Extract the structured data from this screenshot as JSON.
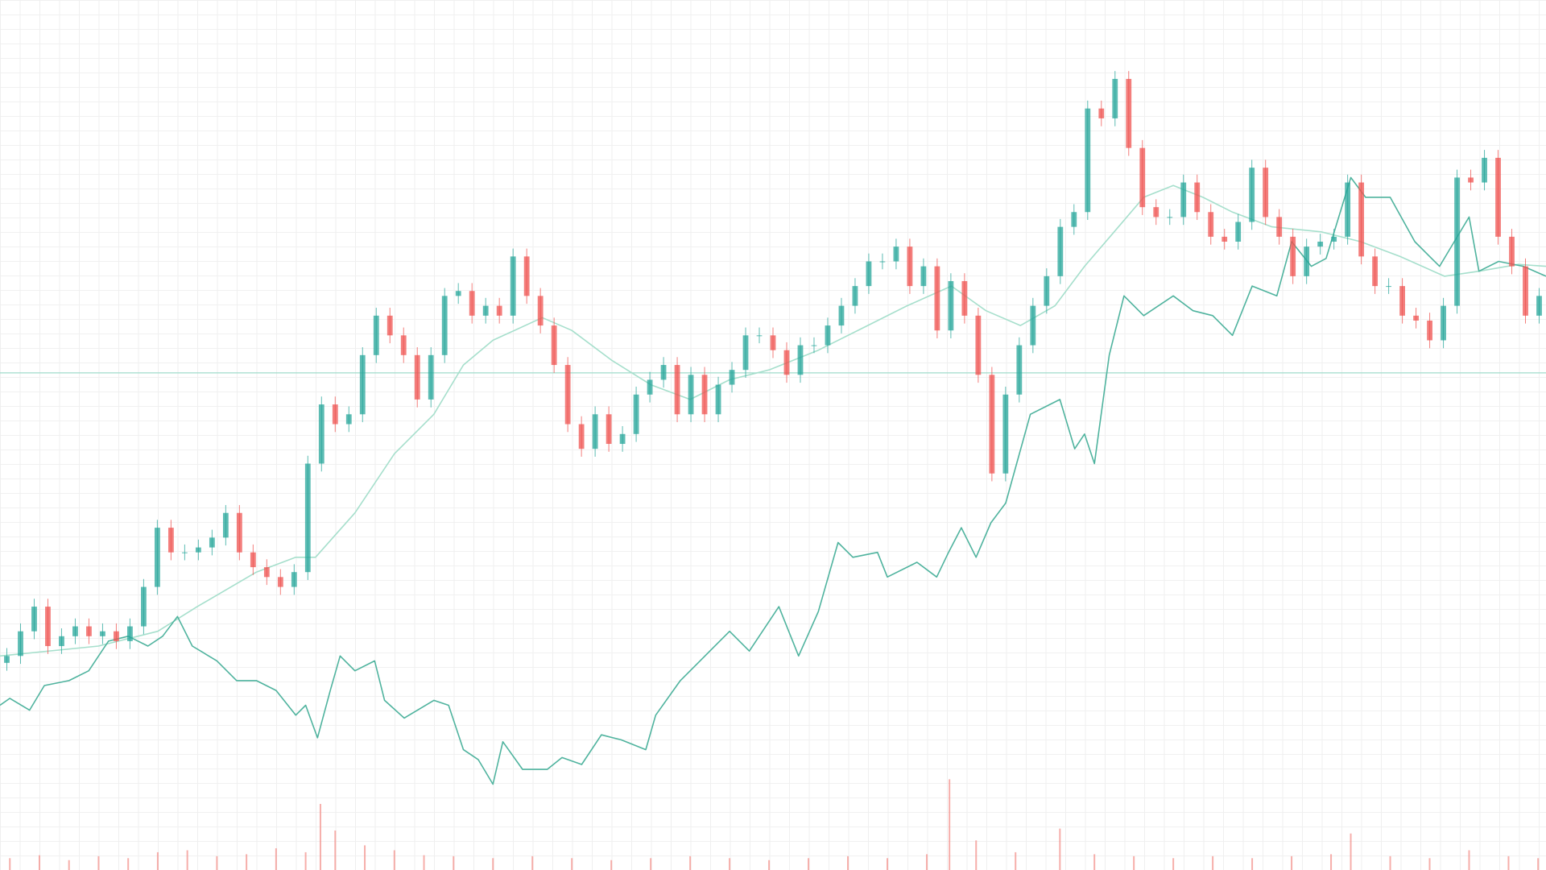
{
  "chart_data": {
    "type": "candlestick",
    "xlim": [
      0,
      1568
    ],
    "ylim": [
      0,
      882
    ],
    "up_color": "#26a69a",
    "down_color": "#ef5350",
    "open": [
      210,
      217,
      242,
      267,
      227,
      237,
      247,
      237,
      242,
      232,
      247,
      287,
      347,
      322,
      322,
      327,
      337,
      362,
      322,
      307,
      297,
      287,
      302,
      412,
      472,
      452,
      462,
      522,
      562,
      542,
      522,
      477,
      522,
      582,
      587,
      562,
      572,
      562,
      622,
      582,
      552,
      512,
      452,
      427,
      462,
      432,
      442,
      482,
      497,
      512,
      462,
      502,
      462,
      492,
      507,
      542,
      542,
      527,
      502,
      532,
      532,
      552,
      572,
      592,
      617,
      617,
      632,
      592,
      612,
      547,
      597,
      562,
      502,
      402,
      482,
      532,
      572,
      602,
      652,
      667,
      772,
      762,
      802,
      732,
      672,
      662,
      662,
      697,
      667,
      642,
      637,
      657,
      712,
      662,
      642,
      602,
      632,
      637,
      642,
      697,
      622,
      592,
      592,
      562,
      557,
      537,
      572,
      702,
      697,
      722,
      642,
      612,
      562
    ],
    "high": [
      225,
      250,
      275,
      275,
      245,
      255,
      255,
      250,
      250,
      255,
      295,
      355,
      355,
      330,
      335,
      345,
      370,
      370,
      330,
      315,
      305,
      310,
      420,
      480,
      480,
      470,
      530,
      570,
      570,
      550,
      530,
      530,
      590,
      595,
      595,
      580,
      580,
      630,
      630,
      590,
      560,
      520,
      460,
      470,
      470,
      450,
      490,
      505,
      520,
      520,
      510,
      510,
      500,
      515,
      550,
      550,
      550,
      535,
      540,
      540,
      560,
      580,
      600,
      625,
      625,
      640,
      640,
      620,
      620,
      605,
      605,
      570,
      510,
      490,
      540,
      580,
      610,
      660,
      675,
      780,
      780,
      810,
      810,
      740,
      680,
      670,
      705,
      705,
      675,
      650,
      665,
      720,
      720,
      670,
      650,
      640,
      645,
      650,
      705,
      705,
      630,
      600,
      600,
      570,
      565,
      580,
      710,
      710,
      730,
      730,
      650,
      620,
      590
    ],
    "low": [
      202,
      209,
      234,
      219,
      219,
      229,
      229,
      229,
      224,
      224,
      239,
      279,
      314,
      314,
      314,
      319,
      329,
      314,
      299,
      289,
      279,
      279,
      294,
      404,
      444,
      444,
      454,
      514,
      534,
      514,
      469,
      469,
      514,
      574,
      554,
      554,
      554,
      554,
      574,
      544,
      504,
      444,
      419,
      419,
      424,
      424,
      434,
      474,
      489,
      454,
      454,
      454,
      454,
      484,
      499,
      534,
      519,
      494,
      494,
      524,
      524,
      544,
      564,
      584,
      609,
      609,
      584,
      584,
      539,
      539,
      554,
      494,
      394,
      394,
      474,
      524,
      564,
      594,
      644,
      659,
      754,
      754,
      724,
      664,
      654,
      654,
      654,
      659,
      634,
      629,
      629,
      649,
      654,
      634,
      594,
      594,
      624,
      629,
      634,
      614,
      584,
      584,
      554,
      549,
      529,
      529,
      564,
      689,
      689,
      634,
      604,
      554,
      554
    ],
    "close": [
      217,
      242,
      267,
      227,
      237,
      247,
      237,
      242,
      232,
      247,
      287,
      347,
      322,
      322,
      327,
      337,
      362,
      322,
      307,
      297,
      287,
      302,
      412,
      472,
      452,
      462,
      522,
      562,
      542,
      522,
      477,
      522,
      582,
      587,
      562,
      572,
      562,
      622,
      582,
      552,
      512,
      452,
      427,
      462,
      432,
      442,
      482,
      497,
      512,
      462,
      502,
      462,
      492,
      507,
      542,
      542,
      527,
      502,
      532,
      532,
      552,
      572,
      592,
      617,
      617,
      632,
      592,
      612,
      547,
      597,
      562,
      502,
      402,
      482,
      532,
      572,
      602,
      652,
      667,
      772,
      762,
      802,
      732,
      672,
      662,
      662,
      697,
      667,
      642,
      637,
      657,
      712,
      662,
      642,
      602,
      632,
      637,
      642,
      697,
      622,
      592,
      592,
      562,
      557,
      537,
      572,
      702,
      697,
      722,
      642,
      612,
      562,
      582
    ],
    "lines": [
      {
        "color": "#a6dfcc",
        "x": [
          0,
          100,
          160,
          200,
          260,
          300,
          320,
          360,
          400,
          440,
          470,
          500,
          550,
          580,
          620,
          660,
          700,
          740,
          780,
          830,
          880,
          920,
          965,
          1000,
          1035,
          1070,
          1100,
          1130,
          1160,
          1190,
          1220,
          1250,
          1290,
          1340,
          1380,
          1420,
          1465,
          1500,
          1540,
          1568
        ],
        "values": [
          217,
          227,
          242,
          267,
          302,
          317,
          317,
          362,
          422,
          462,
          512,
          537,
          560,
          547,
          517,
          492,
          477,
          497,
          507,
          527,
          552,
          572,
          592,
          567,
          552,
          572,
          612,
          647,
          682,
          694,
          682,
          667,
          652,
          647,
          637,
          622,
          602,
          607,
          614,
          612
        ]
      },
      {
        "color": "#4fb39e",
        "x": [
          0,
          10,
          30,
          45,
          70,
          90,
          110,
          130,
          150,
          165,
          180,
          195,
          220,
          240,
          260,
          280,
          300,
          310,
          322,
          335,
          345,
          360,
          380,
          390,
          410,
          440,
          455,
          470,
          485,
          500,
          510,
          530,
          555,
          570,
          590,
          610,
          630,
          655,
          665,
          690,
          710,
          740,
          760,
          790,
          810,
          830,
          850,
          865,
          890,
          900,
          930,
          950,
          962,
          975,
          990,
          1005,
          1020,
          1045,
          1075,
          1090,
          1100,
          1110,
          1125,
          1140,
          1160,
          1190,
          1210,
          1230,
          1250,
          1270,
          1295,
          1310,
          1330,
          1345,
          1370,
          1385,
          1410,
          1435,
          1460,
          1475,
          1490,
          1500,
          1520,
          1545,
          1568
        ],
        "values": [
          167,
          174,
          162,
          187,
          192,
          202,
          232,
          237,
          227,
          237,
          257,
          227,
          212,
          192,
          192,
          182,
          157,
          167,
          134,
          182,
          217,
          202,
          212,
          172,
          154,
          172,
          167,
          122,
          112,
          87,
          130,
          102,
          102,
          114,
          107,
          137,
          132,
          122,
          157,
          192,
          212,
          242,
          222,
          267,
          217,
          262,
          332,
          317,
          322,
          297,
          312,
          297,
          322,
          347,
          317,
          352,
          372,
          462,
          477,
          427,
          442,
          412,
          522,
          582,
          562,
          582,
          567,
          562,
          542,
          592,
          582,
          637,
          612,
          620,
          702,
          682,
          682,
          637,
          612,
          637,
          662,
          607,
          617,
          612,
          602
        ]
      }
    ],
    "price_line": {
      "value": 504,
      "color": "#9fdccb"
    },
    "volume": {
      "color": "#f28b86",
      "x": [
        10,
        40,
        70,
        100,
        130,
        160,
        190,
        220,
        250,
        280,
        310,
        325,
        340,
        370,
        400,
        430,
        460,
        500,
        540,
        580,
        620,
        660,
        700,
        740,
        780,
        820,
        860,
        900,
        940,
        963,
        990,
        1030,
        1075,
        1110,
        1150,
        1190,
        1230,
        1270,
        1310,
        1350,
        1370,
        1410,
        1450,
        1490,
        1530,
        1560
      ],
      "values": [
        12,
        15,
        10,
        14,
        12,
        18,
        20,
        14,
        16,
        22,
        18,
        67,
        40,
        25,
        20,
        15,
        14,
        12,
        14,
        12,
        10,
        12,
        14,
        12,
        10,
        12,
        14,
        12,
        16,
        92,
        30,
        18,
        42,
        16,
        14,
        12,
        14,
        12,
        14,
        16,
        37,
        14,
        12,
        20,
        14,
        12
      ]
    }
  }
}
